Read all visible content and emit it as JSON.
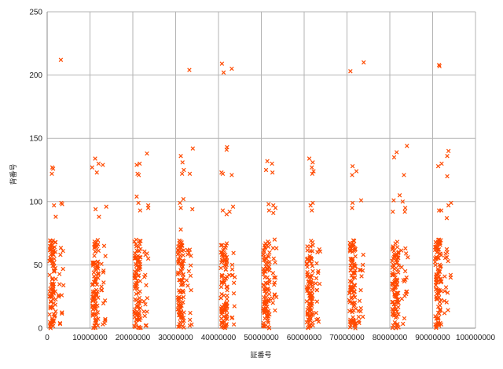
{
  "chart_data": {
    "type": "scatter",
    "title": "",
    "xlabel": "証番号",
    "ylabel": "背番号",
    "xlim": [
      0,
      100000000
    ],
    "ylim": [
      0,
      250
    ],
    "x_ticks": [
      0,
      10000000,
      20000000,
      30000000,
      40000000,
      50000000,
      60000000,
      70000000,
      80000000,
      90000000,
      100000000
    ],
    "y_ticks": [
      0,
      50,
      100,
      150,
      200,
      250
    ],
    "x_tick_labels": [
      "0",
      "10000000",
      "20000000",
      "30000000",
      "40000000",
      "50000000",
      "60000000",
      "70000000",
      "80000000",
      "90000000",
      "100000000"
    ],
    "y_tick_labels": [
      "0",
      "50",
      "100",
      "150",
      "200",
      "250"
    ],
    "grid": true,
    "legend": "none",
    "marker": "x",
    "colors": {
      "marker": "#ff4a00",
      "grid": "#b3b3b3",
      "axis": "#888888",
      "text": "#222222"
    },
    "clusters": [
      {
        "x_center": 1300000,
        "x_spread": 1500000,
        "outer_points": [
          [
            3200000,
            212
          ],
          [
            3300000,
            99
          ],
          [
            3500000,
            98
          ],
          [
            1200000,
            127
          ],
          [
            1400000,
            126
          ],
          [
            1100000,
            122
          ],
          [
            1600000,
            97
          ],
          [
            2000000,
            88
          ],
          [
            3100000,
            58
          ],
          [
            3700000,
            61
          ],
          [
            3400000,
            26
          ],
          [
            3000000,
            4
          ]
        ]
      },
      {
        "x_center": 11300000,
        "x_spread": 1500000,
        "outer_points": [
          [
            11200000,
            134
          ],
          [
            10500000,
            127
          ],
          [
            13000000,
            129
          ],
          [
            12000000,
            130
          ],
          [
            11600000,
            123
          ],
          [
            11300000,
            94
          ],
          [
            12100000,
            88
          ],
          [
            13800000,
            96
          ],
          [
            13300000,
            65
          ],
          [
            13600000,
            57
          ],
          [
            13100000,
            44
          ],
          [
            13400000,
            4
          ],
          [
            13000000,
            3
          ]
        ]
      },
      {
        "x_center": 21100000,
        "x_spread": 1500000,
        "outer_points": [
          [
            23300000,
            138
          ],
          [
            21600000,
            130
          ],
          [
            20900000,
            129
          ],
          [
            21100000,
            122
          ],
          [
            21400000,
            121
          ],
          [
            20900000,
            104
          ],
          [
            21300000,
            99
          ],
          [
            21700000,
            93
          ],
          [
            23600000,
            97
          ],
          [
            23600000,
            95
          ],
          [
            23300000,
            59
          ],
          [
            23600000,
            55
          ],
          [
            22900000,
            42
          ],
          [
            23300000,
            13
          ],
          [
            23000000,
            2
          ]
        ]
      },
      {
        "x_center": 31200000,
        "x_spread": 1500000,
        "outer_points": [
          [
            33200000,
            204
          ],
          [
            34000000,
            142
          ],
          [
            31200000,
            136
          ],
          [
            31600000,
            131
          ],
          [
            31900000,
            125
          ],
          [
            31500000,
            122
          ],
          [
            33300000,
            122
          ],
          [
            31800000,
            102
          ],
          [
            31000000,
            99
          ],
          [
            31200000,
            95
          ],
          [
            33900000,
            94
          ],
          [
            31200000,
            78
          ],
          [
            33300000,
            62
          ],
          [
            33100000,
            45
          ],
          [
            33600000,
            30
          ],
          [
            33400000,
            12
          ],
          [
            33300000,
            2
          ]
        ]
      },
      {
        "x_center": 41300000,
        "x_spread": 1500000,
        "outer_points": [
          [
            40800000,
            209
          ],
          [
            41200000,
            202
          ],
          [
            43100000,
            205
          ],
          [
            42000000,
            143
          ],
          [
            41900000,
            141
          ],
          [
            40700000,
            123
          ],
          [
            41000000,
            122
          ],
          [
            43100000,
            121
          ],
          [
            41000000,
            93
          ],
          [
            42600000,
            92
          ],
          [
            41900000,
            90
          ],
          [
            43400000,
            96
          ],
          [
            42500000,
            42
          ],
          [
            43300000,
            42
          ],
          [
            43100000,
            8
          ]
        ]
      },
      {
        "x_center": 51200000,
        "x_spread": 1500000,
        "outer_points": [
          [
            51400000,
            132
          ],
          [
            52500000,
            130
          ],
          [
            51100000,
            125
          ],
          [
            52600000,
            123
          ],
          [
            51700000,
            98
          ],
          [
            52800000,
            97
          ],
          [
            53300000,
            95
          ],
          [
            51800000,
            93
          ],
          [
            52800000,
            91
          ],
          [
            53100000,
            70
          ],
          [
            52900000,
            55
          ],
          [
            53300000,
            40
          ],
          [
            53100000,
            36
          ],
          [
            52700000,
            20
          ],
          [
            53200000,
            14
          ]
        ]
      },
      {
        "x_center": 61300000,
        "x_spread": 1500000,
        "outer_points": [
          [
            61200000,
            134
          ],
          [
            62000000,
            131
          ],
          [
            61800000,
            127
          ],
          [
            62200000,
            124
          ],
          [
            61900000,
            122
          ],
          [
            62000000,
            99
          ],
          [
            61500000,
            97
          ],
          [
            61800000,
            93
          ],
          [
            63100000,
            60
          ],
          [
            63300000,
            45
          ],
          [
            63600000,
            35
          ],
          [
            63000000,
            30
          ],
          [
            63000000,
            21
          ],
          [
            62800000,
            12
          ]
        ]
      },
      {
        "x_center": 71300000,
        "x_spread": 1500000,
        "outer_points": [
          [
            70800000,
            203
          ],
          [
            73900000,
            210
          ],
          [
            71300000,
            128
          ],
          [
            72200000,
            124
          ],
          [
            71200000,
            121
          ],
          [
            73300000,
            101
          ],
          [
            71300000,
            99
          ],
          [
            71200000,
            95
          ],
          [
            73800000,
            58
          ],
          [
            73700000,
            50
          ],
          [
            73200000,
            46
          ],
          [
            73400000,
            41
          ],
          [
            73700000,
            9
          ],
          [
            72000000,
            4
          ]
        ]
      },
      {
        "x_center": 81300000,
        "x_spread": 1500000,
        "outer_points": [
          [
            84000000,
            144
          ],
          [
            81600000,
            139
          ],
          [
            81000000,
            135
          ],
          [
            83300000,
            121
          ],
          [
            82300000,
            105
          ],
          [
            80900000,
            101
          ],
          [
            83000000,
            100
          ],
          [
            80700000,
            92
          ],
          [
            83600000,
            95
          ],
          [
            83500000,
            92
          ],
          [
            83800000,
            59
          ],
          [
            84200000,
            56
          ],
          [
            83600000,
            45
          ],
          [
            83900000,
            40
          ],
          [
            83400000,
            37
          ],
          [
            84000000,
            29
          ],
          [
            83800000,
            27
          ]
        ]
      },
      {
        "x_center": 91300000,
        "x_spread": 1500000,
        "outer_points": [
          [
            91500000,
            208
          ],
          [
            91600000,
            207
          ],
          [
            93700000,
            140
          ],
          [
            93400000,
            136
          ],
          [
            92100000,
            130
          ],
          [
            91300000,
            128
          ],
          [
            93400000,
            120
          ],
          [
            92000000,
            93
          ],
          [
            91500000,
            93
          ],
          [
            94300000,
            99
          ],
          [
            93700000,
            97
          ],
          [
            93300000,
            87
          ],
          [
            93400000,
            60
          ],
          [
            93300000,
            56
          ],
          [
            93600000,
            53
          ],
          [
            94200000,
            42
          ],
          [
            94200000,
            40
          ],
          [
            93500000,
            28
          ]
        ]
      }
    ],
    "cluster_dense_range": [
      0,
      70
    ]
  }
}
